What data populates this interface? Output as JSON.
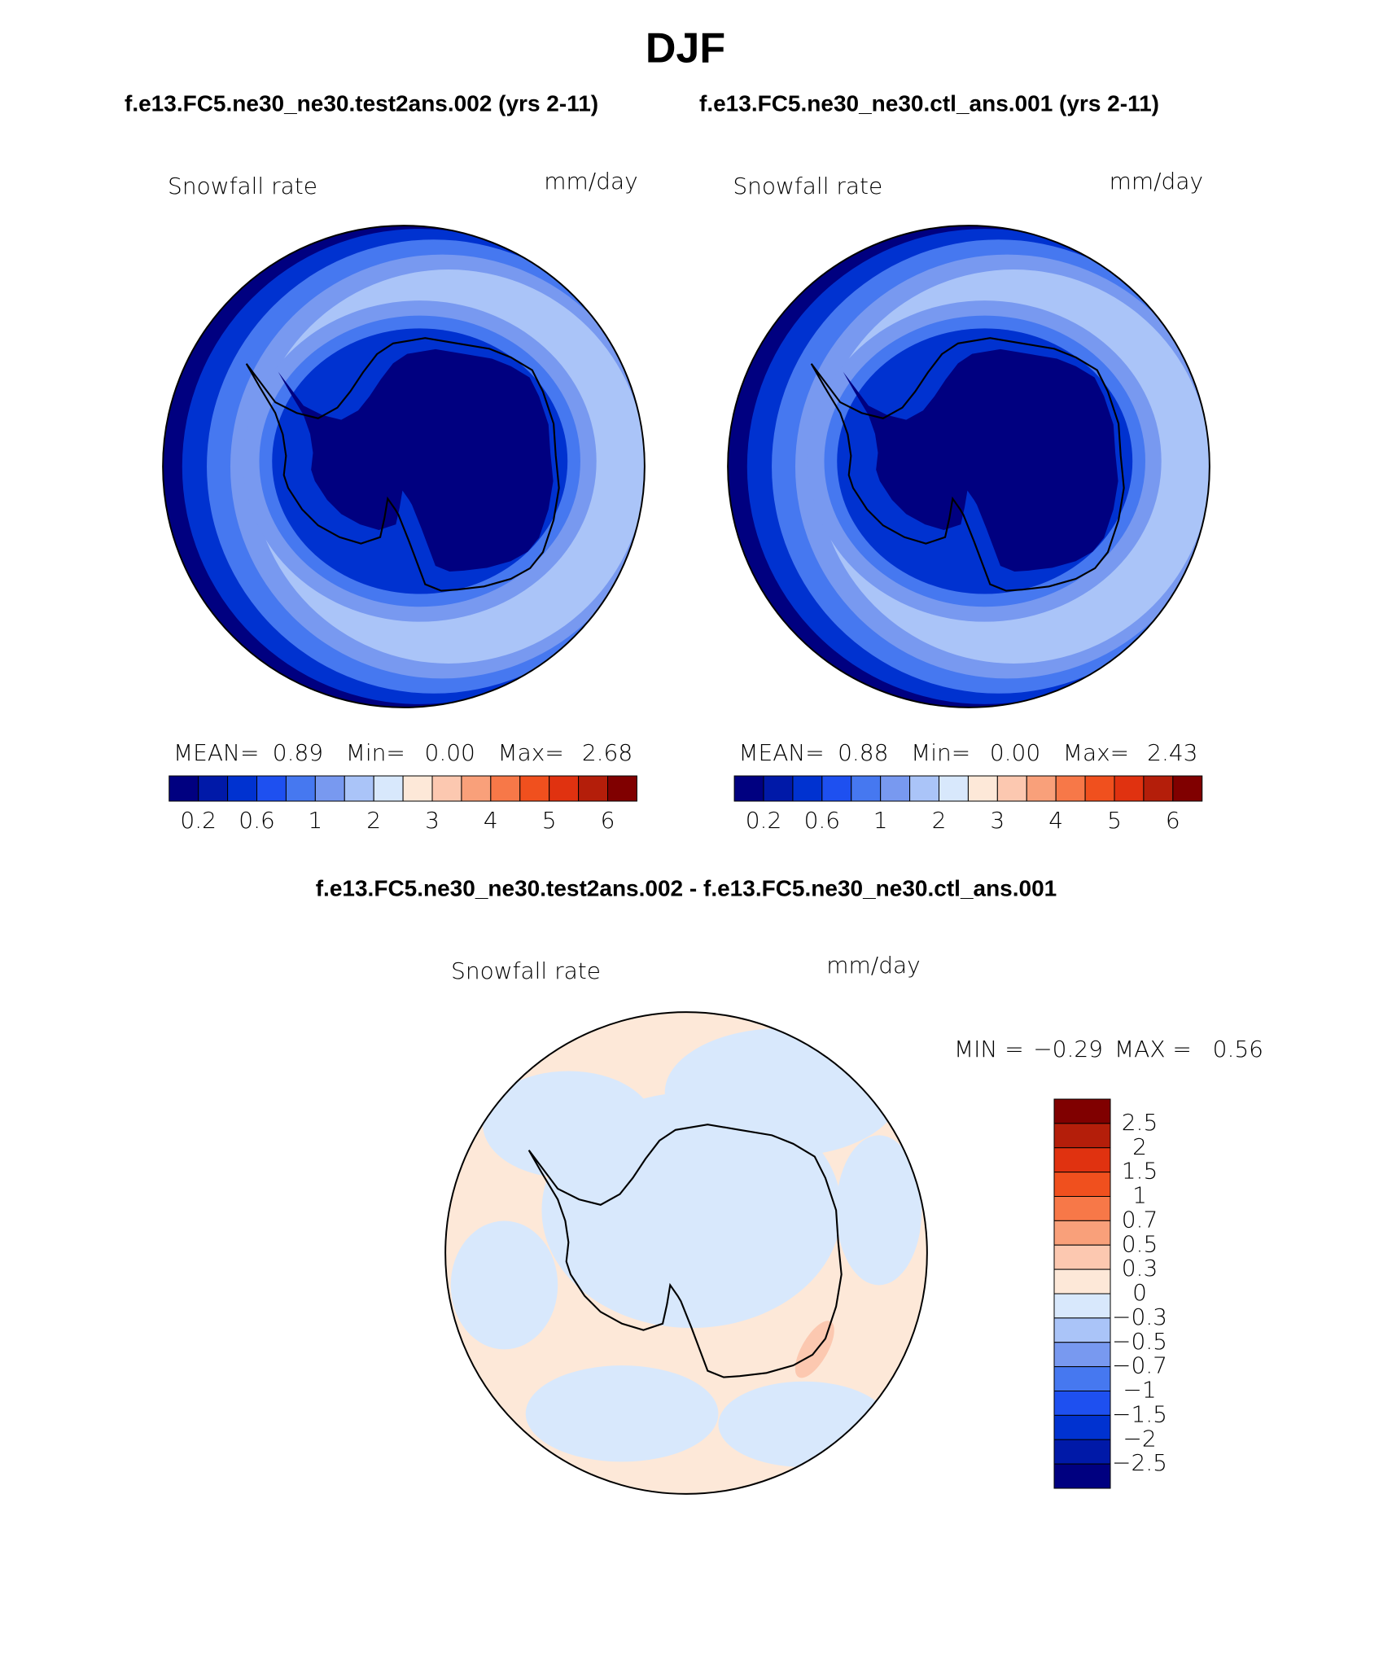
{
  "title": "DJF",
  "subtitle_left": "f.e13.FC5.ne30_ne30.test2ans.002 (yrs 2-11)",
  "subtitle_right": "f.e13.FC5.ne30_ne30.ctl_ans.001 (yrs 2-11)",
  "panels": [
    {
      "variable": "Snowfall rate",
      "units": "mm/day",
      "stats": [
        {
          "name": "MEAN=",
          "value": 0.89
        },
        {
          "name": "Min=",
          "value": {
            "value": 0,
            "label": "0.00"
          }
        },
        {
          "name": "Max=",
          "value": 2.68
        }
      ]
    },
    {
      "variable": "Snowfall rate",
      "units": "mm/day",
      "stats": [
        {
          "name": "MEAN=",
          "value": 0.88
        },
        {
          "name": "Min=",
          "value": {
            "value": 0,
            "label": "0.00"
          }
        },
        {
          "name": "Max=",
          "value": 2.43
        }
      ]
    }
  ],
  "colorbar": {
    "colors": [
      "#000080",
      "#0019a8",
      "#0032d0",
      "#1e50f0",
      "#4678f0",
      "#7899f0",
      "#aac4f8",
      "#d8e8fc",
      "#fde8d8",
      "#fcc8b0",
      "#f9a07a",
      "#f77848",
      "#f0501e",
      "#e03210",
      "#b41e0a",
      "#800000"
    ],
    "ticks": [
      0.2,
      0.6,
      1,
      2,
      3,
      4,
      5,
      6
    ]
  },
  "difference": {
    "title": "f.e13.FC5.ne30_ne30.test2ans.002 - f.e13.FC5.ne30_ne30.ctl_ans.001",
    "variable": "Snowfall rate",
    "units": "mm/day",
    "min_name": "MIN =",
    "min": {
      "value": -0.29,
      "label": "−0.29"
    },
    "max_name": "MAX =",
    "max": 0.56
  },
  "diff_colorbar": {
    "colors": [
      "#800000",
      "#b41e0a",
      "#e03210",
      "#f0501e",
      "#f77848",
      "#f9a07a",
      "#fcc8b0",
      "#fde8d8",
      "#d8e8fc",
      "#aac4f8",
      "#7899f0",
      "#4678f0",
      "#1e50f0",
      "#0032d0",
      "#0019a8",
      "#000080"
    ],
    "ticks": [
      2.5,
      2,
      1.5,
      1,
      0.7,
      0.5,
      0.3,
      0,
      {
        "value": -0.3,
        "label": "−0.3"
      },
      {
        "value": -0.5,
        "label": "−0.5"
      },
      {
        "value": -0.7,
        "label": "−0.7"
      },
      {
        "value": -1,
        "label": "−1"
      },
      {
        "value": -1.5,
        "label": "−1.5"
      },
      {
        "value": -2,
        "label": "−2"
      },
      {
        "value": -2.5,
        "label": "−2.5"
      }
    ]
  }
}
